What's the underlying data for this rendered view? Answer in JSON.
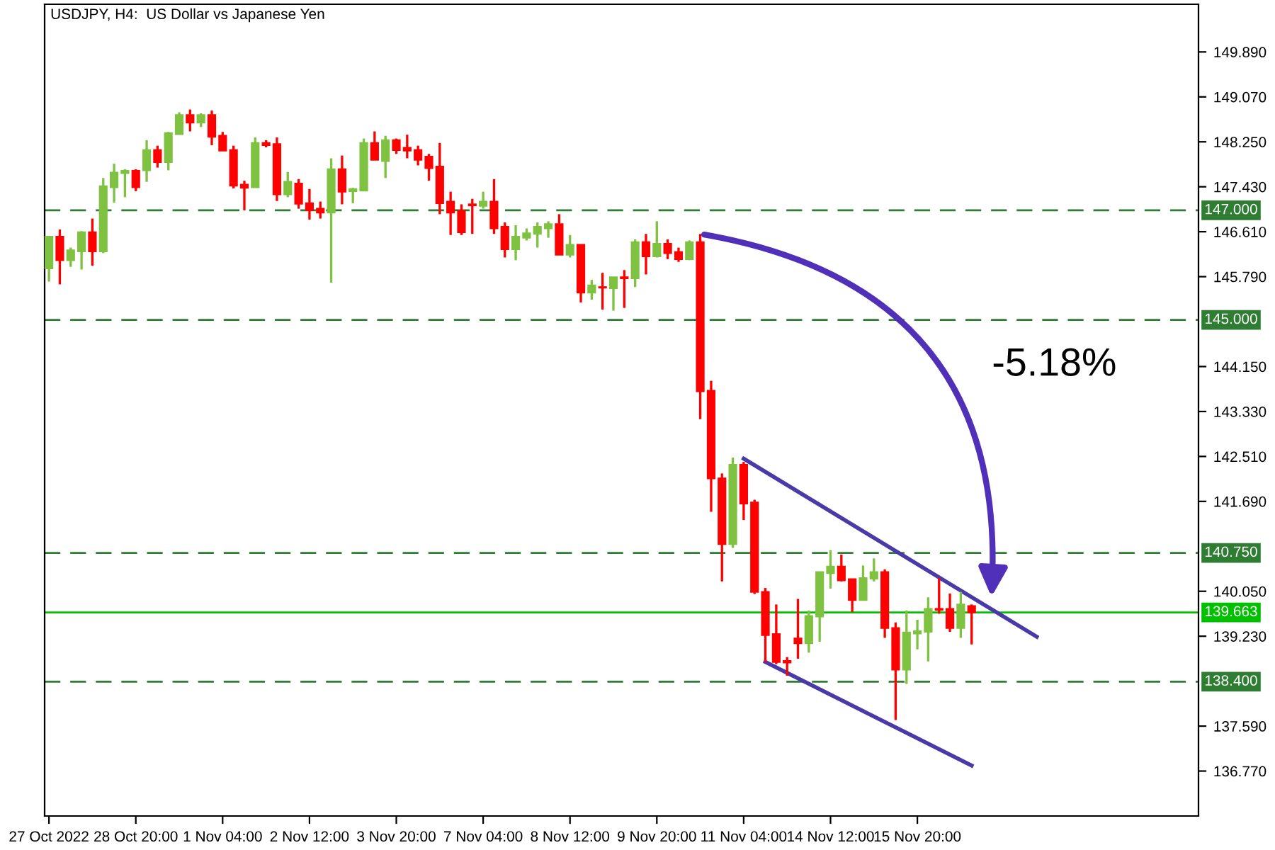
{
  "chart_data": {
    "type": "candlestick",
    "title": "USDJPY, H4:  US Dollar vs Japanese Yen",
    "categories": [
      "27 Oct 2022",
      null,
      null,
      null,
      null,
      null,
      null,
      null,
      "28 Oct 20:00",
      null,
      null,
      null,
      null,
      null,
      null,
      null,
      "1 Nov 04:00",
      null,
      null,
      null,
      null,
      null,
      null,
      null,
      "2 Nov 12:00",
      null,
      null,
      null,
      null,
      null,
      null,
      null,
      "3 Nov 20:00",
      null,
      null,
      null,
      null,
      null,
      null,
      null,
      "7 Nov 04:00",
      null,
      null,
      null,
      null,
      null,
      null,
      null,
      "8 Nov 12:00",
      null,
      null,
      null,
      null,
      null,
      null,
      null,
      "9 Nov 20:00",
      null,
      null,
      null,
      null,
      null,
      null,
      null,
      "11 Nov 04:00",
      null,
      null,
      null,
      null,
      null,
      null,
      null,
      "14 Nov 12:00",
      null,
      null,
      null,
      null,
      null,
      null,
      null,
      "15 Nov 20:00",
      null,
      null,
      null,
      null,
      null,
      null,
      null,
      null,
      null,
      null,
      null,
      null,
      null,
      null,
      null,
      null,
      null,
      null,
      null,
      null,
      null,
      null,
      null,
      null,
      null
    ],
    "ohlc": [
      [
        145.94,
        146.52,
        145.7,
        146.52
      ],
      [
        146.52,
        146.65,
        145.65,
        146.09
      ],
      [
        146.09,
        146.32,
        145.97,
        146.27
      ],
      [
        146.25,
        146.62,
        145.92,
        146.6
      ],
      [
        146.6,
        146.85,
        145.99,
        146.25
      ],
      [
        146.25,
        147.59,
        146.22,
        147.44
      ],
      [
        147.42,
        147.85,
        147.14,
        147.69
      ],
      [
        147.68,
        147.75,
        147.24,
        147.72
      ],
      [
        147.72,
        147.75,
        147.35,
        147.42
      ],
      [
        147.73,
        148.28,
        147.52,
        148.1
      ],
      [
        148.1,
        148.18,
        147.78,
        147.88
      ],
      [
        147.88,
        148.43,
        147.73,
        148.41
      ],
      [
        148.39,
        148.79,
        148.39,
        148.74
      ],
      [
        148.74,
        148.84,
        148.44,
        148.6
      ],
      [
        148.6,
        148.77,
        148.52,
        148.74
      ],
      [
        148.74,
        148.82,
        148.19,
        148.34
      ],
      [
        148.36,
        148.43,
        148.09,
        148.09
      ],
      [
        148.1,
        148.18,
        147.4,
        147.45
      ],
      [
        147.47,
        147.54,
        147.0,
        147.41
      ],
      [
        147.42,
        148.33,
        147.42,
        148.23
      ],
      [
        148.23,
        148.28,
        148.15,
        148.19
      ],
      [
        148.21,
        148.33,
        147.17,
        147.29
      ],
      [
        147.29,
        147.7,
        147.24,
        147.52
      ],
      [
        147.49,
        147.57,
        147.03,
        147.12
      ],
      [
        147.13,
        147.39,
        146.83,
        147.0
      ],
      [
        147.03,
        147.16,
        146.85,
        146.96
      ],
      [
        146.96,
        147.95,
        145.68,
        147.75
      ],
      [
        147.75,
        148.0,
        147.11,
        147.34
      ],
      [
        147.35,
        147.41,
        147.13,
        147.39
      ],
      [
        147.36,
        148.31,
        147.36,
        148.23
      ],
      [
        148.23,
        148.44,
        147.92,
        147.92
      ],
      [
        147.9,
        148.36,
        147.59,
        148.28
      ],
      [
        148.28,
        148.31,
        148.03,
        148.1
      ],
      [
        148.14,
        148.38,
        147.95,
        148.09
      ],
      [
        148.1,
        148.18,
        147.82,
        147.92
      ],
      [
        147.98,
        148.03,
        147.54,
        147.77
      ],
      [
        147.8,
        148.23,
        146.93,
        147.13
      ],
      [
        147.16,
        147.34,
        146.55,
        146.96
      ],
      [
        146.99,
        147.11,
        146.55,
        146.6
      ],
      [
        147.11,
        147.21,
        146.57,
        147.09
      ],
      [
        147.08,
        147.34,
        147.03,
        147.16
      ],
      [
        147.16,
        147.57,
        146.57,
        146.67
      ],
      [
        146.7,
        146.78,
        146.14,
        146.29
      ],
      [
        146.29,
        146.73,
        146.09,
        146.52
      ],
      [
        146.5,
        146.67,
        146.45,
        146.58
      ],
      [
        146.57,
        146.78,
        146.32,
        146.7
      ],
      [
        146.67,
        146.8,
        146.5,
        146.75
      ],
      [
        146.75,
        146.93,
        146.19,
        146.19
      ],
      [
        146.19,
        146.55,
        146.14,
        146.37
      ],
      [
        146.37,
        146.37,
        145.32,
        145.5
      ],
      [
        145.5,
        145.73,
        145.37,
        145.63
      ],
      [
        145.6,
        145.86,
        145.19,
        145.59
      ],
      [
        145.58,
        145.78,
        145.17,
        145.78
      ],
      [
        145.78,
        145.91,
        145.22,
        145.76
      ],
      [
        145.76,
        146.47,
        145.6,
        146.42
      ],
      [
        146.42,
        146.57,
        145.83,
        146.16
      ],
      [
        146.16,
        146.8,
        146.14,
        146.39
      ],
      [
        146.39,
        146.47,
        146.11,
        146.22
      ],
      [
        146.24,
        146.32,
        146.06,
        146.11
      ],
      [
        146.11,
        146.45,
        146.09,
        146.42
      ],
      [
        146.42,
        146.57,
        143.19,
        143.7
      ],
      [
        143.71,
        143.89,
        141.5,
        142.11
      ],
      [
        142.11,
        142.2,
        140.23,
        140.91
      ],
      [
        140.91,
        142.49,
        140.84,
        142.36
      ],
      [
        142.36,
        142.41,
        141.35,
        141.65
      ],
      [
        141.67,
        141.72,
        140.0,
        140.04
      ],
      [
        140.04,
        140.11,
        138.76,
        139.25
      ],
      [
        139.27,
        139.81,
        138.72,
        138.76
      ],
      [
        138.78,
        138.85,
        138.51,
        138.75
      ],
      [
        139.19,
        139.91,
        138.82,
        139.1
      ],
      [
        139.1,
        139.7,
        138.93,
        139.6
      ],
      [
        139.59,
        140.41,
        139.13,
        140.4
      ],
      [
        140.38,
        140.8,
        140.1,
        140.5
      ],
      [
        140.5,
        140.72,
        140.23,
        140.25
      ],
      [
        140.27,
        140.27,
        139.67,
        139.89
      ],
      [
        139.89,
        140.52,
        139.89,
        140.29
      ],
      [
        140.28,
        140.65,
        140.23,
        140.4
      ],
      [
        140.4,
        140.45,
        139.2,
        139.38
      ],
      [
        139.38,
        139.48,
        137.7,
        138.62
      ],
      [
        138.62,
        139.7,
        138.36,
        139.3
      ],
      [
        139.28,
        139.53,
        138.99,
        139.32
      ],
      [
        139.31,
        139.94,
        138.77,
        139.73
      ],
      [
        139.73,
        140.29,
        139.64,
        139.71
      ],
      [
        139.73,
        140.01,
        139.31,
        139.38
      ],
      [
        139.38,
        140.04,
        139.2,
        139.81
      ],
      [
        139.78,
        139.81,
        139.08,
        139.663
      ],
      null,
      null,
      null,
      null,
      null,
      null,
      null,
      null,
      null,
      null,
      null,
      null,
      null,
      null,
      null,
      null,
      null,
      null,
      null,
      null
    ],
    "colors": [
      "#7fc241",
      "#ff0000",
      "#7fc241",
      "#7fc241",
      "#ff0000",
      "#7fc241",
      "#7fc241",
      "#7fc241",
      "#ff0000",
      "#7fc241",
      "#ff0000",
      "#7fc241",
      "#7fc241",
      "#ff0000",
      "#7fc241",
      "#ff0000",
      "#ff0000",
      "#ff0000",
      "#ff0000",
      "#7fc241",
      "#ff0000",
      "#ff0000",
      "#7fc241",
      "#ff0000",
      "#ff0000",
      "#ff0000",
      "#7fc241",
      "#ff0000",
      "#7fc241",
      "#7fc241",
      "#ff0000",
      "#7fc241",
      "#ff0000",
      "#ff0000",
      "#ff0000",
      "#ff0000",
      "#ff0000",
      "#ff0000",
      "#ff0000",
      "#ff0000",
      "#7fc241",
      "#ff0000",
      "#ff0000",
      "#7fc241",
      "#7fc241",
      "#7fc241",
      "#7fc241",
      "#ff0000",
      "#7fc241",
      "#ff0000",
      "#7fc241",
      "#ff0000",
      "#7fc241",
      "#ff0000",
      "#7fc241",
      "#ff0000",
      "#7fc241",
      "#ff0000",
      "#ff0000",
      "#7fc241",
      "#ff0000",
      "#ff0000",
      "#ff0000",
      "#7fc241",
      "#ff0000",
      "#ff0000",
      "#ff0000",
      "#ff0000",
      "#ff0000",
      "#ff0000",
      "#7fc241",
      "#7fc241",
      "#7fc241",
      "#ff0000",
      "#ff0000",
      "#7fc241",
      "#7fc241",
      "#ff0000",
      "#ff0000",
      "#7fc241",
      "#7fc241",
      "#7fc241",
      "#ff0000",
      "#ff0000",
      "#7fc241",
      "#ff0000",
      null,
      null,
      null,
      null,
      null,
      null,
      null,
      null,
      null,
      null,
      null,
      null,
      null,
      null,
      null,
      null,
      null,
      null,
      null,
      null
    ],
    "series": [
      {
        "type": "line",
        "color": "#4a3aa8",
        "values": [
          null,
          null,
          null,
          null,
          null,
          null,
          null,
          null,
          null,
          null,
          null,
          null,
          null,
          null,
          null,
          null,
          null,
          null,
          null,
          null,
          null,
          null,
          null,
          null,
          null,
          null,
          null,
          null,
          null,
          null,
          null,
          null,
          null,
          null,
          null,
          null,
          null,
          null,
          null,
          null,
          null,
          null,
          null,
          null,
          null,
          null,
          null,
          null,
          null,
          null,
          null,
          null,
          null,
          null,
          null,
          null,
          null,
          null,
          null,
          null,
          null,
          null,
          null,
          null,
          142.47,
          null,
          null,
          null,
          null,
          null,
          null,
          null,
          null,
          null,
          null,
          null,
          null,
          null,
          null,
          null,
          null,
          null,
          null,
          null,
          null,
          null,
          null,
          null,
          null,
          null,
          null,
          139.22,
          null,
          null,
          null,
          null,
          null,
          null,
          null,
          null,
          null,
          null,
          null,
          null,
          null,
          null
        ]
      },
      {
        "type": "line",
        "color": "#4a3aa8",
        "values": [
          null,
          null,
          null,
          null,
          null,
          null,
          null,
          null,
          null,
          null,
          null,
          null,
          null,
          null,
          null,
          null,
          null,
          null,
          null,
          null,
          null,
          null,
          null,
          null,
          null,
          null,
          null,
          null,
          null,
          null,
          null,
          null,
          null,
          null,
          null,
          null,
          null,
          null,
          null,
          null,
          null,
          null,
          null,
          null,
          null,
          null,
          null,
          null,
          null,
          null,
          null,
          null,
          null,
          null,
          null,
          null,
          null,
          null,
          null,
          null,
          null,
          null,
          null,
          null,
          null,
          null,
          138.76,
          null,
          null,
          null,
          null,
          null,
          null,
          null,
          null,
          null,
          null,
          null,
          null,
          null,
          null,
          null,
          null,
          null,
          null,
          136.87,
          null,
          null,
          null,
          null,
          null,
          null,
          null,
          null,
          null,
          null,
          null,
          null,
          null,
          null,
          null,
          null,
          null,
          null,
          null,
          null
        ]
      }
    ],
    "ref_lines": [
      {
        "axis": "y",
        "value": 147.0,
        "label": "147.000",
        "color": "#2e7d32",
        "line_style": "dashed"
      },
      {
        "axis": "y",
        "value": 145.0,
        "label": "145.000",
        "color": "#2e7d32",
        "line_style": "dashed"
      },
      {
        "axis": "y",
        "value": 140.75,
        "label": "140.750",
        "color": "#2e7d32",
        "line_style": "dashed"
      },
      {
        "axis": "y",
        "value": 138.4,
        "label": "138.400",
        "color": "#2e7d32",
        "line_style": "dashed"
      },
      {
        "axis": "y",
        "value": 139.663,
        "label": "139.663",
        "color": "#00c000",
        "line_style": "solid"
      }
    ],
    "annotations": [
      "-5.18%"
    ],
    "ylim": [
      135.95,
      150.76
    ],
    "yticks": [
      {
        "value": 136.77,
        "label": "136.770"
      },
      {
        "value": 137.59,
        "label": "137.590"
      },
      {
        "value": 139.23,
        "label": "139.230"
      },
      {
        "value": 140.05,
        "label": "140.050"
      },
      {
        "value": 141.69,
        "label": "141.690"
      },
      {
        "value": 142.51,
        "label": "142.510"
      },
      {
        "value": 143.33,
        "label": "143.330"
      },
      {
        "value": 144.15,
        "label": "144.150"
      },
      {
        "value": 145.79,
        "label": "145.790"
      },
      {
        "value": 146.61,
        "label": "146.610"
      },
      {
        "value": 147.43,
        "label": "147.430"
      },
      {
        "value": 148.25,
        "label": "148.250"
      },
      {
        "value": 149.07,
        "label": "149.070"
      },
      {
        "value": 149.89,
        "label": "149.890"
      }
    ],
    "grid": false,
    "legend": false
  }
}
